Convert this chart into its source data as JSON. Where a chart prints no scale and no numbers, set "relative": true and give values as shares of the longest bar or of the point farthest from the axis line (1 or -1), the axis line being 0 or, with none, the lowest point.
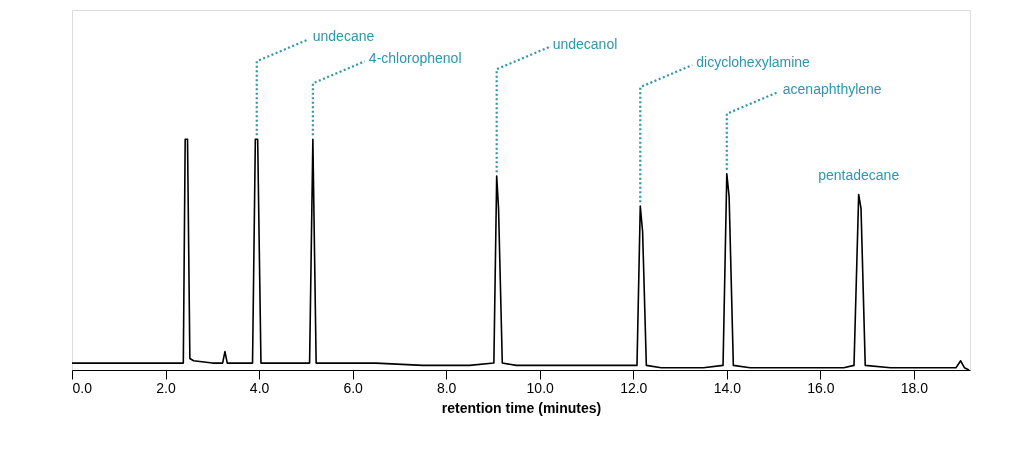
{
  "chart_data": {
    "type": "line",
    "relative": true,
    "xlabel": "retention time (minutes)",
    "xlim": [
      0,
      19.2
    ],
    "xticks": [
      {
        "value": 0,
        "label": "0.0"
      },
      {
        "value": 2,
        "label": "2.0"
      },
      {
        "value": 4,
        "label": "4.0"
      },
      {
        "value": 6,
        "label": "6.0"
      },
      {
        "value": 8,
        "label": "8.0"
      },
      {
        "value": 10,
        "label": "10.0"
      },
      {
        "value": 12,
        "label": "12.0"
      },
      {
        "value": 14,
        "label": "14.0"
      },
      {
        "value": 16,
        "label": "16.0"
      },
      {
        "value": 18,
        "label": "18.0"
      }
    ],
    "grid": false,
    "marker": "none",
    "line_style": "solid",
    "x": [
      0,
      0.5,
      1.0,
      1.5,
      2.0,
      2.38,
      2.42,
      2.47,
      2.52,
      2.6,
      3.0,
      3.22,
      3.27,
      3.32,
      3.6,
      3.86,
      3.92,
      3.97,
      4.04,
      4.4,
      4.8,
      5.08,
      5.15,
      5.22,
      5.6,
      6.5,
      7.5,
      8.5,
      9.02,
      9.08,
      9.12,
      9.2,
      9.5,
      10.5,
      11.5,
      12.08,
      12.15,
      12.2,
      12.28,
      12.6,
      13.5,
      13.92,
      14.0,
      14.05,
      14.14,
      14.5,
      15.5,
      16.5,
      16.72,
      16.82,
      16.87,
      16.96,
      17.5,
      18.5,
      18.9,
      19.0,
      19.08,
      19.18
    ],
    "series": [
      {
        "color": "#000000",
        "values": [
          0.03,
          0.03,
          0.03,
          0.03,
          0.03,
          0.03,
          1.0,
          1.0,
          0.05,
          0.04,
          0.03,
          0.03,
          0.08,
          0.03,
          0.03,
          0.03,
          1.0,
          1.0,
          0.03,
          0.03,
          0.03,
          0.03,
          1.0,
          0.03,
          0.03,
          0.03,
          0.02,
          0.02,
          0.03,
          0.84,
          0.7,
          0.03,
          0.02,
          0.02,
          0.02,
          0.02,
          0.71,
          0.6,
          0.02,
          0.01,
          0.01,
          0.02,
          0.85,
          0.75,
          0.02,
          0.01,
          0.01,
          0.01,
          0.02,
          0.76,
          0.7,
          0.02,
          0.01,
          0.01,
          0.01,
          0.04,
          0.01,
          0.0
        ]
      }
    ],
    "annotations": [
      {
        "text": "undecane",
        "x": 3.95,
        "y": 1.0
      },
      {
        "text": "4-chlorophenol",
        "x": 5.15,
        "y": 1.0
      },
      {
        "text": "undecanol",
        "x": 9.08,
        "y": 0.84
      },
      {
        "text": "dicyclohexylamine",
        "x": 12.15,
        "y": 0.71
      },
      {
        "text": "acenaphthylene",
        "x": 14.0,
        "y": 0.85
      },
      {
        "text": "pentadecane",
        "x": 16.82,
        "y": 0.76
      }
    ]
  }
}
